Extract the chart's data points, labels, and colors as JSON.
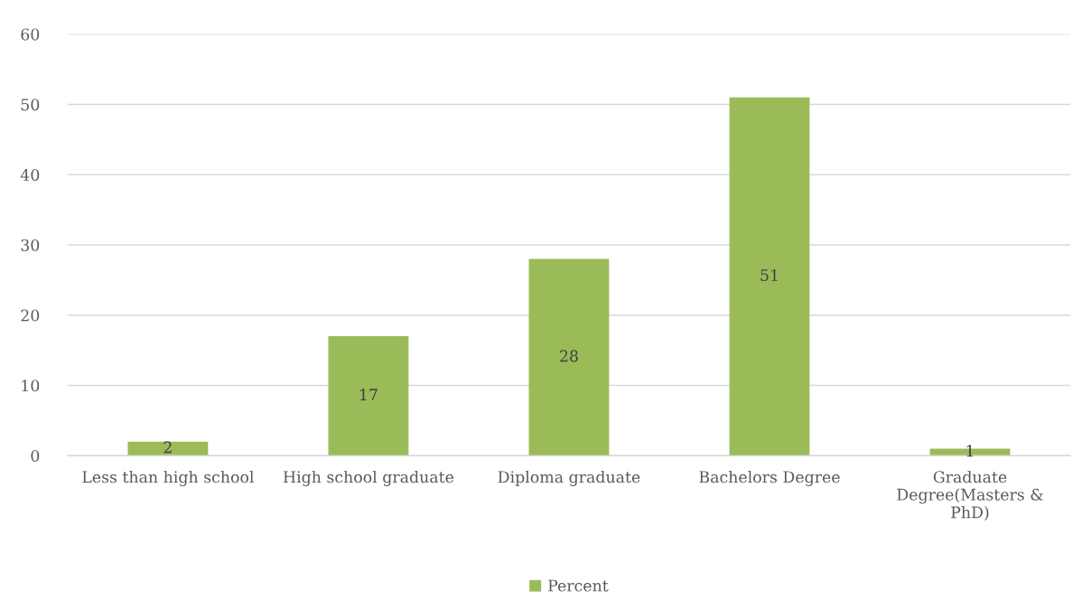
{
  "chart_data": {
    "type": "bar",
    "categories": [
      "Less than high school",
      "High school graduate",
      "Diploma graduate",
      "Bachelors Degree",
      "Graduate Degree(Masters & PhD)"
    ],
    "series": [
      {
        "name": "Percent",
        "color": "#9bbb59",
        "values": [
          2,
          17,
          28,
          51,
          1
        ]
      }
    ],
    "ylim": [
      0,
      60
    ],
    "yticks": [
      0,
      10,
      20,
      30,
      40,
      50,
      60
    ],
    "grid": "y",
    "legend": "bottom",
    "data_labels": true
  }
}
